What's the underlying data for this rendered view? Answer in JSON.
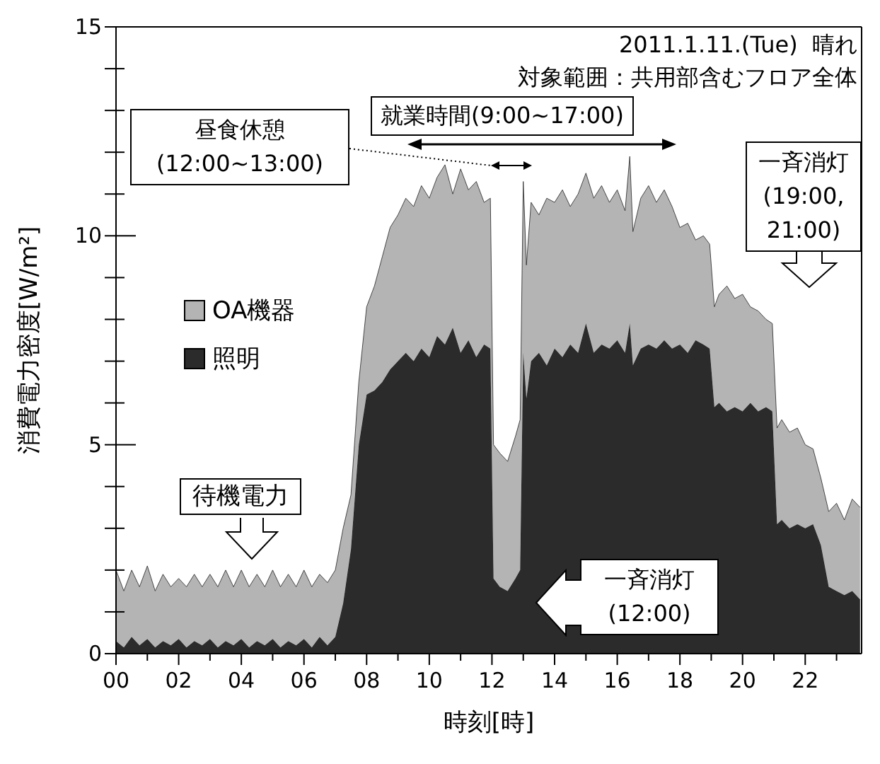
{
  "chart_data": {
    "type": "area",
    "stacked": true,
    "x": [
      0,
      0.25,
      0.5,
      0.75,
      1,
      1.25,
      1.5,
      1.75,
      2,
      2.25,
      2.5,
      2.75,
      3,
      3.25,
      3.5,
      3.75,
      4,
      4.25,
      4.5,
      4.75,
      5,
      5.25,
      5.5,
      5.75,
      6,
      6.25,
      6.5,
      6.75,
      7,
      7.25,
      7.5,
      7.75,
      8,
      8.25,
      8.5,
      8.75,
      9,
      9.25,
      9.5,
      9.75,
      10,
      10.25,
      10.5,
      10.75,
      11,
      11.25,
      11.5,
      11.75,
      11.95,
      12.05,
      12.25,
      12.5,
      12.75,
      12.9,
      13,
      13.1,
      13.25,
      13.5,
      13.75,
      14,
      14.25,
      14.5,
      14.75,
      15,
      15.25,
      15.5,
      15.75,
      16,
      16.25,
      16.4,
      16.5,
      16.75,
      17,
      17.25,
      17.5,
      17.75,
      18,
      18.25,
      18.5,
      18.75,
      18.95,
      19.1,
      19.25,
      19.5,
      19.75,
      20,
      20.25,
      20.5,
      20.75,
      20.95,
      21.1,
      21.25,
      21.5,
      21.75,
      22,
      22.25,
      22.5,
      22.75,
      23,
      23.25,
      23.5,
      23.75
    ],
    "series": [
      {
        "name": "照明",
        "color": "#2b2b2b",
        "values": [
          0.3,
          0.15,
          0.4,
          0.2,
          0.35,
          0.15,
          0.3,
          0.2,
          0.35,
          0.15,
          0.3,
          0.2,
          0.35,
          0.15,
          0.3,
          0.2,
          0.35,
          0.15,
          0.3,
          0.2,
          0.35,
          0.15,
          0.3,
          0.2,
          0.35,
          0.15,
          0.4,
          0.2,
          0.4,
          1.2,
          2.5,
          5.0,
          6.2,
          6.3,
          6.5,
          6.8,
          7.0,
          7.2,
          7.0,
          7.3,
          7.1,
          7.6,
          7.4,
          7.8,
          7.2,
          7.5,
          7.1,
          7.4,
          7.3,
          1.8,
          1.6,
          1.5,
          1.8,
          2.0,
          7.2,
          6.1,
          7.0,
          7.2,
          6.9,
          7.3,
          7.1,
          7.4,
          7.2,
          7.9,
          7.2,
          7.4,
          7.3,
          7.5,
          7.2,
          7.9,
          6.9,
          7.3,
          7.4,
          7.3,
          7.5,
          7.3,
          7.4,
          7.2,
          7.5,
          7.4,
          7.3,
          5.9,
          6.0,
          5.8,
          5.9,
          5.8,
          6.0,
          5.8,
          5.9,
          5.8,
          3.1,
          3.2,
          3.0,
          3.1,
          3.0,
          3.1,
          2.6,
          1.6,
          1.5,
          1.4,
          1.5,
          1.3
        ]
      },
      {
        "name": "OA機器",
        "color": "#b4b4b4",
        "values": [
          1.7,
          1.35,
          1.6,
          1.4,
          1.75,
          1.35,
          1.6,
          1.4,
          1.45,
          1.45,
          1.6,
          1.4,
          1.55,
          1.45,
          1.7,
          1.4,
          1.65,
          1.45,
          1.6,
          1.4,
          1.65,
          1.45,
          1.6,
          1.4,
          1.65,
          1.45,
          1.5,
          1.5,
          1.6,
          1.8,
          1.3,
          1.5,
          2.1,
          2.5,
          3.0,
          3.4,
          3.5,
          3.7,
          3.7,
          3.9,
          3.8,
          3.8,
          4.3,
          3.2,
          4.4,
          3.6,
          4.2,
          3.4,
          3.6,
          3.2,
          3.2,
          3.1,
          3.4,
          3.6,
          4.1,
          3.2,
          3.8,
          3.3,
          4.0,
          3.5,
          4.0,
          3.3,
          3.8,
          3.6,
          3.7,
          3.8,
          3.5,
          3.6,
          3.4,
          4.0,
          3.2,
          3.6,
          3.8,
          3.5,
          3.6,
          3.4,
          2.8,
          3.1,
          2.4,
          2.6,
          2.5,
          2.4,
          2.6,
          3.0,
          2.6,
          2.8,
          2.3,
          2.4,
          2.1,
          2.1,
          2.3,
          2.4,
          2.3,
          2.3,
          2.0,
          1.8,
          1.6,
          1.8,
          2.1,
          1.8,
          2.2,
          2.2
        ]
      }
    ],
    "xlabel": "時刻[時]",
    "ylabel": "消費電力密度[W/m²]",
    "xlim": [
      0,
      23.8
    ],
    "ylim": [
      0,
      15
    ],
    "xticks": [
      {
        "value": 0,
        "label": "00"
      },
      {
        "value": 1,
        "label": null
      },
      {
        "value": 2,
        "label": "02"
      },
      {
        "value": 3,
        "label": null
      },
      {
        "value": 4,
        "label": "04"
      },
      {
        "value": 5,
        "label": null
      },
      {
        "value": 6,
        "label": "06"
      },
      {
        "value": 7,
        "label": null
      },
      {
        "value": 8,
        "label": "08"
      },
      {
        "value": 9,
        "label": null
      },
      {
        "value": 10,
        "label": "10"
      },
      {
        "value": 11,
        "label": null
      },
      {
        "value": 12,
        "label": "12"
      },
      {
        "value": 13,
        "label": null
      },
      {
        "value": 14,
        "label": "14"
      },
      {
        "value": 15,
        "label": null
      },
      {
        "value": 16,
        "label": "16"
      },
      {
        "value": 17,
        "label": null
      },
      {
        "value": 18,
        "label": "18"
      },
      {
        "value": 19,
        "label": null
      },
      {
        "value": 20,
        "label": "20"
      },
      {
        "value": 21,
        "label": null
      },
      {
        "value": 22,
        "label": "22"
      },
      {
        "value": 23,
        "label": null
      }
    ],
    "yticks": [
      0,
      {
        "value": 1,
        "label": null
      },
      {
        "value": 2,
        "label": null
      },
      {
        "value": 3,
        "label": null
      },
      {
        "value": 4,
        "label": null
      },
      5,
      {
        "value": 6,
        "label": null
      },
      {
        "value": 7,
        "label": null
      },
      {
        "value": 8,
        "label": null
      },
      {
        "value": 9,
        "label": null
      },
      10,
      {
        "value": 11,
        "label": null
      },
      {
        "value": 12,
        "label": null
      },
      {
        "value": 13,
        "label": null
      },
      {
        "value": 14,
        "label": null
      },
      15
    ],
    "legend": "top left",
    "annotations": [
      "2011.1.11.(Tue)  晴れ",
      "対象範囲：共用部含むフロア全体",
      "就業時間(9:00~17:00)",
      "昼食休憩\n(12:00~13:00)",
      "一斉消灯\n(19:00,\n21:00)",
      "待機電力",
      "一斉消灯\n(12:00)"
    ]
  }
}
